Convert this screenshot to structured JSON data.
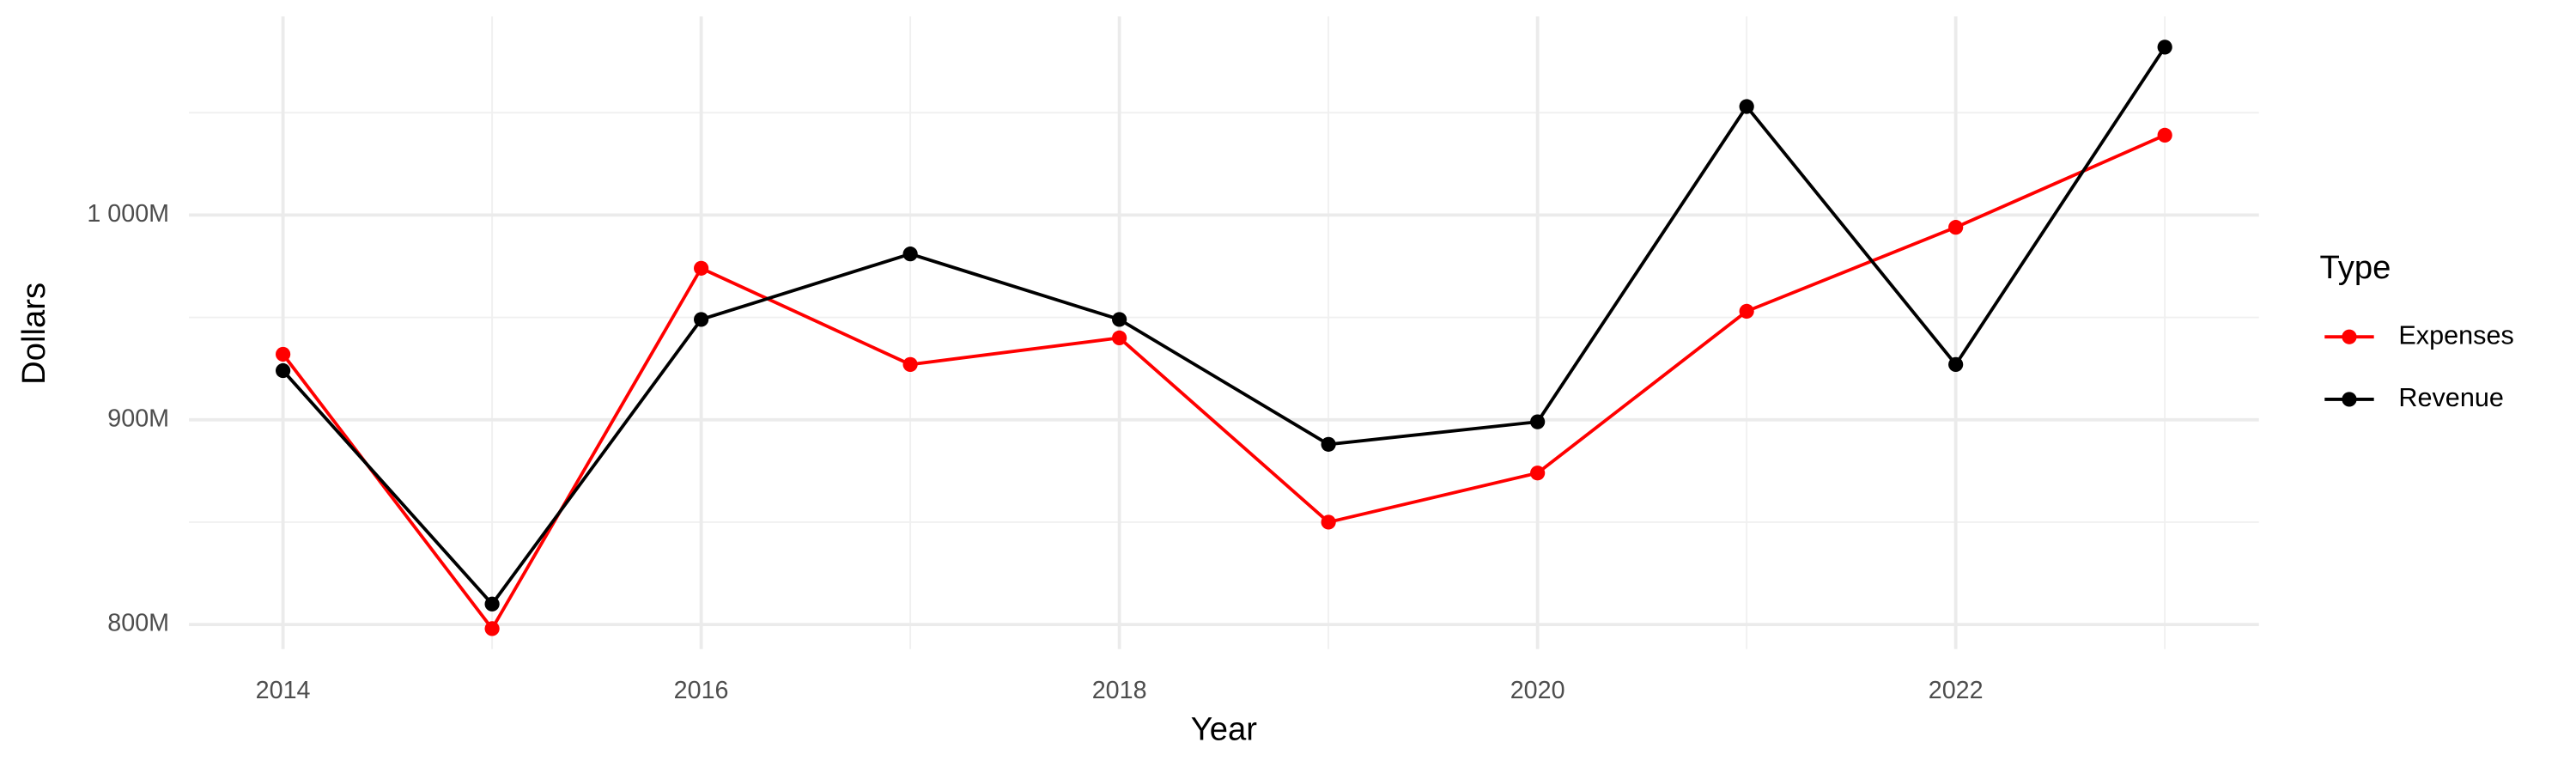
{
  "chart_data": {
    "type": "line",
    "x_label": "Year",
    "y_label": "Dollars",
    "legend_title": "Type",
    "x": [
      2014,
      2015,
      2016,
      2017,
      2018,
      2019,
      2020,
      2021,
      2022,
      2023
    ],
    "series": [
      {
        "name": "Expenses",
        "color": "#ff0000",
        "values": [
          932000000,
          798000000,
          974000000,
          927000000,
          940000000,
          850000000,
          874000000,
          953000000,
          994000000,
          1039000000
        ]
      },
      {
        "name": "Revenue",
        "color": "#000000",
        "values": [
          924000000,
          810000000,
          949000000,
          981000000,
          949000000,
          888000000,
          899000000,
          1053000000,
          927000000,
          1082000000
        ]
      }
    ],
    "xlim": [
      2013.55,
      2023.45
    ],
    "xticks": [
      2014,
      2016,
      2018,
      2020,
      2022
    ],
    "ylim": [
      788000000,
      1097000000
    ],
    "yticks": [
      {
        "value": 800000000,
        "label": "800M"
      },
      {
        "value": 900000000,
        "label": "900M"
      },
      {
        "value": 1000000000,
        "label": "1 000M"
      }
    ],
    "grid": true,
    "legend_position": "right"
  }
}
